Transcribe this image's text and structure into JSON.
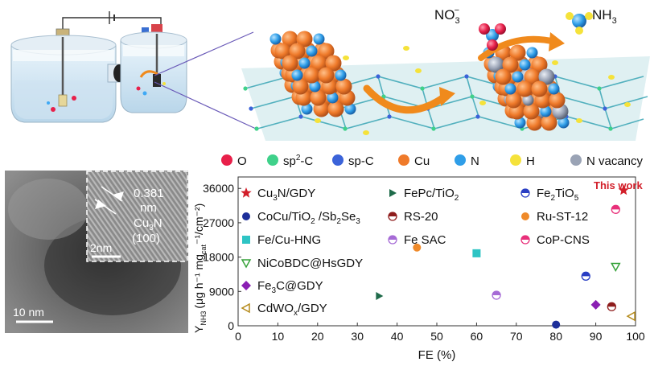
{
  "top_labels": {
    "nitrate": "NO",
    "nitrate_sub": "3",
    "nitrate_sup": "−",
    "ammonia": "NH",
    "ammonia_sub": "3"
  },
  "atom_legend": [
    {
      "label": "O",
      "sup": "",
      "tail": "",
      "color": "#e8204a"
    },
    {
      "label": "sp",
      "sup": "2",
      "tail": "-C",
      "color": "#3fd18a"
    },
    {
      "label": "sp-C",
      "sup": "",
      "tail": "",
      "color": "#3b63d9"
    },
    {
      "label": "Cu",
      "sup": "",
      "tail": "",
      "color": "#ef7a2a"
    },
    {
      "label": "N",
      "sup": "",
      "tail": "",
      "color": "#2f9ee8"
    },
    {
      "label": "H",
      "sup": "",
      "tail": "",
      "color": "#f5e23a"
    },
    {
      "label": "N vacancy",
      "sup": "",
      "tail": "",
      "color": "#9aa3b5"
    }
  ],
  "tem": {
    "lattice_value": "0.381",
    "lattice_unit": "nm",
    "phase": "Cu",
    "phase_sub": "3",
    "phase_tail": "N",
    "plane": "(100)",
    "inset_scale": "2nm",
    "main_scale": "10 nm"
  },
  "chart_data": {
    "type": "scatter",
    "xlabel": "FE (%)",
    "ylabel": "Y",
    "ylabel_sub": "NH3",
    "ylabel_unit": "(μg h⁻¹ mg",
    "ylabel_unit_sub": "cat",
    "ylabel_unit_tail": "⁻¹/cm⁻²)",
    "xlim": [
      0,
      100
    ],
    "ylim": [
      0,
      39000
    ],
    "x_ticks": [
      0,
      10,
      20,
      30,
      40,
      50,
      60,
      70,
      80,
      90,
      100
    ],
    "y_ticks": [
      0,
      9000,
      18000,
      27000,
      36000
    ],
    "y_tick_labels": [
      "0",
      "9000",
      "18000",
      "27000",
      "36000"
    ],
    "annotation": "This work",
    "series": [
      {
        "name": "Cu3N/GDY",
        "display": [
          [
            "Cu",
            ""
          ],
          [
            "3",
            "sub"
          ],
          [
            "N/GDY",
            ""
          ]
        ],
        "marker": "star",
        "color": "#d21f2a",
        "x": 97,
        "y": 35500
      },
      {
        "name": "CoCu/TiO2 /Sb2Se3",
        "display": [
          [
            "CoCu/TiO",
            ""
          ],
          [
            "2",
            "sub"
          ],
          [
            " /Sb",
            ""
          ],
          [
            "2",
            "sub"
          ],
          [
            "Se",
            ""
          ],
          [
            "3",
            "sub"
          ]
        ],
        "marker": "circle",
        "color": "#1d2f9a",
        "x": 80,
        "y": 300
      },
      {
        "name": "Fe/Cu-HNG",
        "display": [
          [
            "Fe/Cu-HNG",
            ""
          ]
        ],
        "marker": "square",
        "color": "#2ec4c4",
        "x": 60,
        "y": 19000
      },
      {
        "name": "NiCoBDC@HsGDY",
        "display": [
          [
            "NiCoBDC@HsGDY",
            ""
          ]
        ],
        "marker": "triangle-down-open",
        "color": "#36a23a",
        "x": 95,
        "y": 15500
      },
      {
        "name": "Fe3C@GDY",
        "display": [
          [
            "Fe",
            ""
          ],
          [
            "3",
            "sub"
          ],
          [
            "C@GDY",
            ""
          ]
        ],
        "marker": "diamond",
        "color": "#8a1fb3",
        "x": 90,
        "y": 5500
      },
      {
        "name": "CdWOx/GDY",
        "display": [
          [
            "CdWO",
            ""
          ],
          [
            "x",
            "sub"
          ],
          [
            "/GDY",
            ""
          ]
        ],
        "marker": "triangle-left-open",
        "color": "#b58a1a",
        "x": 99,
        "y": 2500
      },
      {
        "name": "FePc/TiO2",
        "display": [
          [
            "FePc/TiO",
            ""
          ],
          [
            "2",
            "sub"
          ]
        ],
        "marker": "triangle-right",
        "color": "#1f6b4a",
        "x": 35.5,
        "y": 7800
      },
      {
        "name": "RS-20",
        "display": [
          [
            "RS-20",
            ""
          ]
        ],
        "marker": "circle-half",
        "color": "#8e1c1c",
        "x": 94,
        "y": 5000
      },
      {
        "name": "Fe SAC",
        "display": [
          [
            "Fe SAC",
            ""
          ]
        ],
        "marker": "circle-half",
        "color": "#a66bd6",
        "x": 65,
        "y": 8000
      },
      {
        "name": "Fe2TiO5",
        "display": [
          [
            "Fe",
            ""
          ],
          [
            "2",
            "sub"
          ],
          [
            "TiO",
            ""
          ],
          [
            "5",
            "sub"
          ]
        ],
        "marker": "circle-half",
        "color": "#2a3fc4",
        "x": 87.5,
        "y": 13000
      },
      {
        "name": "Ru-ST-12",
        "display": [
          [
            "Ru-ST-12",
            ""
          ]
        ],
        "marker": "circle",
        "color": "#ef8a2a",
        "x": 45,
        "y": 20500
      },
      {
        "name": "CoP-CNS",
        "display": [
          [
            "CoP-CNS",
            ""
          ]
        ],
        "marker": "circle-half",
        "color": "#e8307a",
        "x": 95,
        "y": 30500
      }
    ]
  }
}
